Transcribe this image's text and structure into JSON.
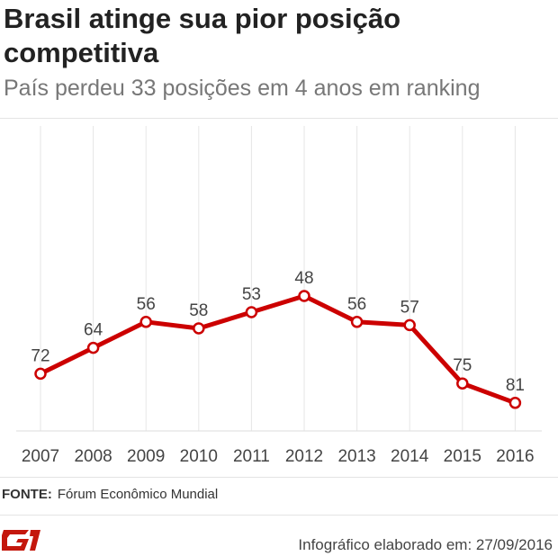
{
  "header": {
    "title": "Brasil atinge sua pior posição competitiva",
    "subtitle": "País perdeu 33 posições em 4 anos em ranking"
  },
  "footer": {
    "source_label": "FONTE:",
    "source_text": "Fórum Econômico Mundial",
    "credit": "Infográfico elaborado em: 27/09/2016",
    "logo_text": "G1"
  },
  "colors": {
    "line": "#cc0000",
    "marker_fill": "#ffffff",
    "grid": "#e6e6e6",
    "label": "#444444"
  },
  "chart_data": {
    "type": "line",
    "categories": [
      "2007",
      "2008",
      "2009",
      "2010",
      "2011",
      "2012",
      "2013",
      "2014",
      "2015",
      "2016"
    ],
    "series": [
      {
        "values": [
          72,
          64,
          56,
          58,
          53,
          48,
          56,
          57,
          75,
          81
        ]
      }
    ],
    "data_labels": [
      "72",
      "64",
      "56",
      "58",
      "53",
      "48",
      "56",
      "57",
      "75",
      "81"
    ],
    "y_inverted": true,
    "grid": "vertical",
    "legend": "none"
  }
}
